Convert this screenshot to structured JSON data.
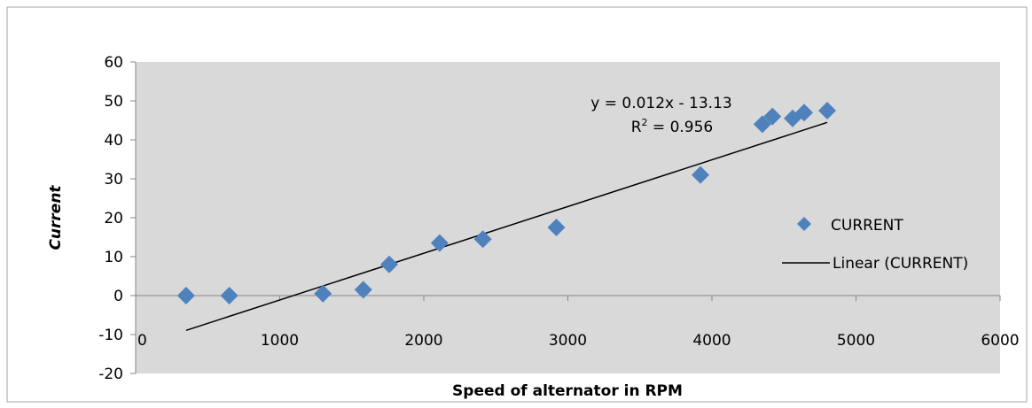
{
  "chart_data": {
    "type": "scatter",
    "title": "",
    "xlabel": "Speed of alternator in RPM",
    "ylabel": "Current",
    "xlim": [
      0,
      6000
    ],
    "ylim": [
      -20,
      60
    ],
    "x_ticks": [
      0,
      1000,
      2000,
      3000,
      4000,
      5000,
      6000
    ],
    "y_ticks": [
      -20,
      -10,
      0,
      10,
      20,
      30,
      40,
      50,
      60
    ],
    "grid": false,
    "legend_position": "right",
    "series": [
      {
        "name": "CURRENT",
        "color": "#4F81BD",
        "marker": "diamond",
        "points": [
          {
            "x": 350,
            "y": 0
          },
          {
            "x": 650,
            "y": 0
          },
          {
            "x": 1300,
            "y": 0.5
          },
          {
            "x": 1580,
            "y": 1.5
          },
          {
            "x": 1760,
            "y": 8
          },
          {
            "x": 2110,
            "y": 13.5
          },
          {
            "x": 2410,
            "y": 14.5
          },
          {
            "x": 2920,
            "y": 17.5
          },
          {
            "x": 3920,
            "y": 31
          },
          {
            "x": 4350,
            "y": 44
          },
          {
            "x": 4420,
            "y": 46
          },
          {
            "x": 4560,
            "y": 45.5
          },
          {
            "x": 4640,
            "y": 47
          },
          {
            "x": 4800,
            "y": 47.5
          }
        ]
      }
    ],
    "trendline": {
      "name": "Linear (CURRENT)",
      "type": "linear",
      "slope": 0.012,
      "intercept": -13.13,
      "x_range": [
        350,
        4800
      ],
      "color": "#000000",
      "equation_label": "y = 0.012x - 13.13",
      "r2_label_prefix": "R",
      "r2_label_suffix": " = 0.956"
    }
  }
}
